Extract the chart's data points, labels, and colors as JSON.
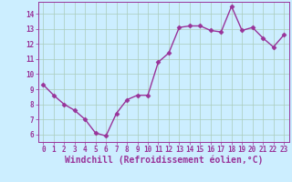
{
  "x": [
    0,
    1,
    2,
    3,
    4,
    5,
    6,
    7,
    8,
    9,
    10,
    11,
    12,
    13,
    14,
    15,
    16,
    17,
    18,
    19,
    20,
    21,
    22,
    23
  ],
  "y": [
    9.3,
    8.6,
    8.0,
    7.6,
    7.0,
    6.1,
    5.9,
    7.4,
    8.3,
    8.6,
    8.6,
    10.8,
    11.4,
    13.1,
    13.2,
    13.2,
    12.9,
    12.8,
    14.5,
    12.9,
    13.1,
    12.4,
    11.8,
    12.6
  ],
  "line_color": "#993399",
  "marker": "D",
  "markersize": 2.5,
  "bg_color": "#cceeff",
  "grid_color": "#aaccbb",
  "xlabel": "Windchill (Refroidissement éolien,°C)",
  "xlim": [
    -0.5,
    23.5
  ],
  "ylim": [
    5.5,
    14.8
  ],
  "yticks": [
    6,
    7,
    8,
    9,
    10,
    11,
    12,
    13,
    14
  ],
  "xticks": [
    0,
    1,
    2,
    3,
    4,
    5,
    6,
    7,
    8,
    9,
    10,
    11,
    12,
    13,
    14,
    15,
    16,
    17,
    18,
    19,
    20,
    21,
    22,
    23
  ],
  "tick_color": "#993399",
  "tick_fontsize": 5.5,
  "xlabel_fontsize": 7.0,
  "linewidth": 1.0
}
